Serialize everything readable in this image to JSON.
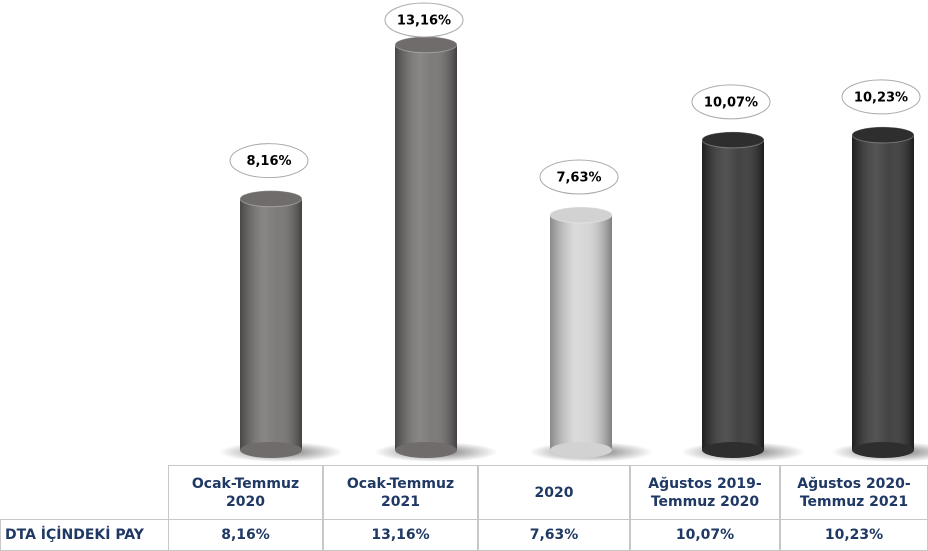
{
  "chart_data": {
    "type": "bar",
    "categories": [
      "Ocak-Temmuz\n2020",
      "Ocak-Temmuz\n2021",
      "2020",
      "Ağustos 2019-\nTemmuz 2020",
      "Ağustos 2020-\nTemmuz 2021"
    ],
    "series": [
      {
        "name": "DTA İÇİNDEKİ PAY",
        "values": [
          8.16,
          13.16,
          7.63,
          10.07,
          10.23
        ],
        "value_labels": [
          "8,16%",
          "13,16%",
          "7,63%",
          "10,07%",
          "10,23%"
        ],
        "colors": [
          "#6f6c6b",
          "#6f6c6b",
          "#d2d2d2",
          "#2e2e2e",
          "#2e2e2e"
        ]
      }
    ]
  }
}
